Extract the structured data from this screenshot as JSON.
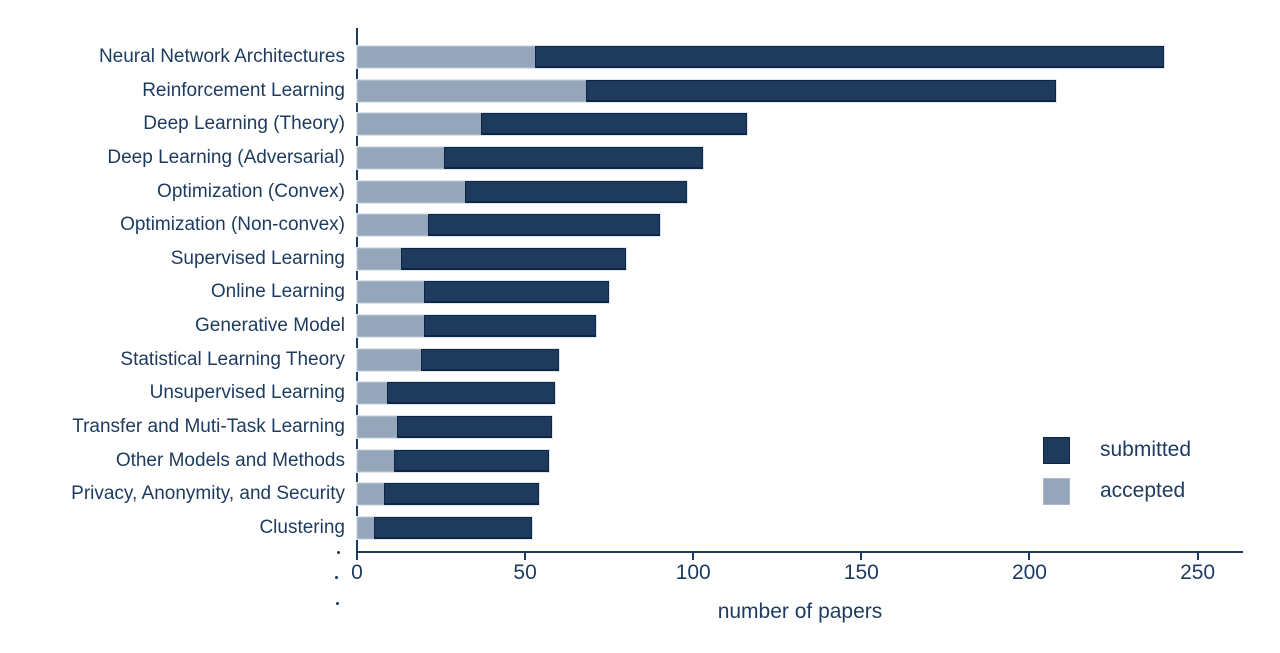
{
  "chart_data": {
    "type": "bar",
    "orientation": "horizontal",
    "title": "",
    "xlabel": "number of papers",
    "ylabel": "",
    "categories": [
      "Neural Network Architectures",
      "Reinforcement Learning",
      "Deep Learning (Theory)",
      "Deep Learning (Adversarial)",
      "Optimization (Convex)",
      "Optimization (Non-convex)",
      "Supervised Learning",
      "Online Learning",
      "Generative Model",
      "Statistical Learning Theory",
      "Unsupervised Learning",
      "Transfer and Muti-Task Learning",
      "Other Models and Methods",
      "Privacy, Anonymity, and Security",
      "Clustering"
    ],
    "series": [
      {
        "name": "submitted",
        "color": "#1e3a5c",
        "values": [
          240,
          208,
          116,
          103,
          98,
          90,
          80,
          75,
          71,
          60,
          59,
          58,
          57,
          54,
          52
        ]
      },
      {
        "name": "accepted",
        "color": "#95a6ba",
        "values": [
          53,
          68,
          37,
          26,
          32,
          21,
          13,
          20,
          20,
          19,
          9,
          12,
          11,
          8,
          5
        ]
      }
    ],
    "bar_style": "overlaid (accepted drawn over submitted from zero)",
    "xticks": [
      0,
      50,
      100,
      150,
      200,
      250
    ],
    "xlim": [
      0,
      263
    ],
    "grid": false,
    "legend": {
      "position": "middle-right",
      "entries": [
        "submitted",
        "accepted"
      ]
    }
  },
  "colors": {
    "text": "#1d3a5f",
    "axis": "#1d3a5f",
    "submitted": "#1e3a5c",
    "accepted": "#95a6ba",
    "background": "#ffffff"
  }
}
